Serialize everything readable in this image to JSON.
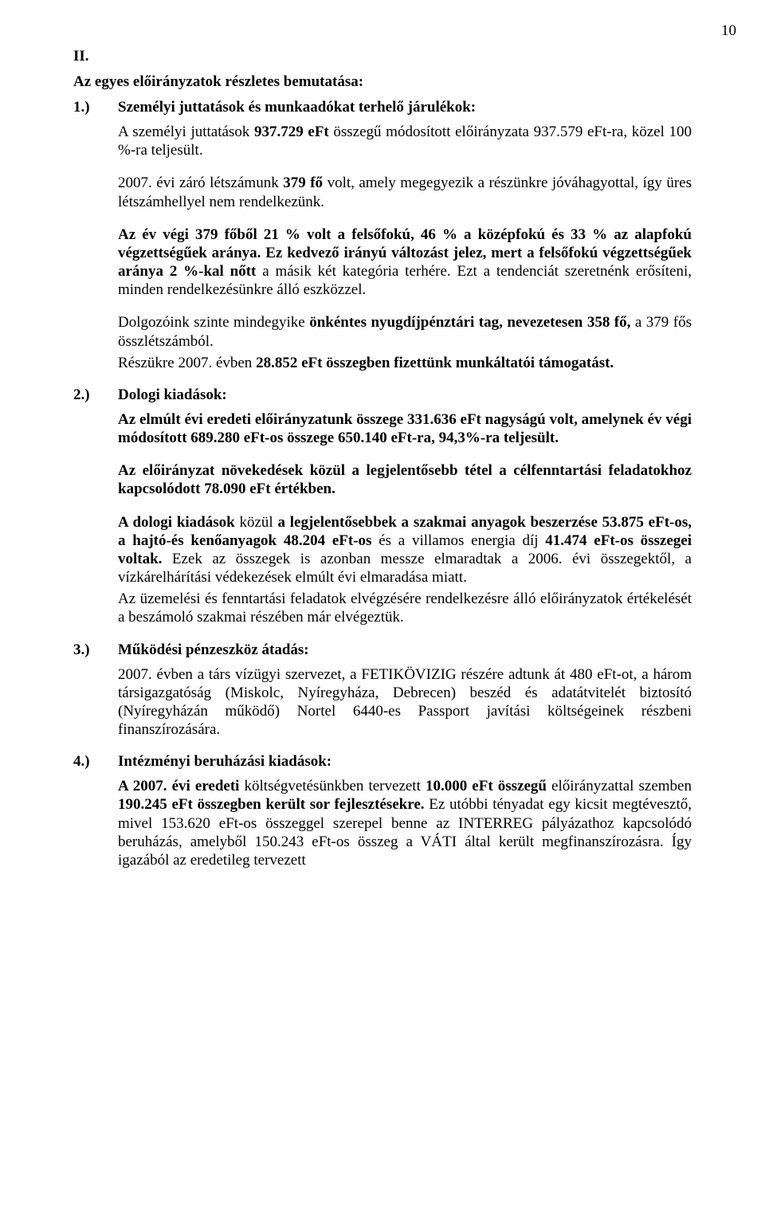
{
  "pageNumber": "10",
  "sectionII": {
    "roman": "II.",
    "title": "Az egyes előirányzatok részletes bemutatása:"
  },
  "item1": {
    "num": "1.)",
    "title": "Személyi juttatások és munkaadókat terhelő járulékok:",
    "p1_a": "A személyi juttatások ",
    "p1_b": "937.729 eFt ",
    "p1_c": "összegű módosított előirányzata 937.579 eFt-ra, közel 100 %-ra teljesült.",
    "p2_a": "2007. évi záró létszámunk ",
    "p2_b": "379 fő ",
    "p2_c": "volt, amely megegyezik a részünkre jóváhagyottal, így üres létszámhellyel nem rendelkezünk.",
    "p3_a": "Az év végi 379 főből 21 % volt a felsőfokú, 46 % a középfokú és 33 % az alapfokú végzettségűek aránya. Ez kedvező irányú változást jelez, mert a felsőfokú végzettségűek aránya 2 %-kal nőtt ",
    "p3_b": "a másik két kategória terhére. Ezt a tendenciát szeretnénk erősíteni, minden rendelkezésünkre álló eszközzel.",
    "p4_a": "Dolgozóink szinte mindegyike ",
    "p4_b": "önkéntes nyugdíjpénztári tag, nevezetesen 358 fő,",
    "p4_c": " a 379 fős összlétszámból.",
    "p5_a": "Részükre 2007. évben ",
    "p5_b": "28.852 eFt összegben fizettünk munkáltatói támogatást."
  },
  "item2": {
    "num": "2.)",
    "title": "Dologi kiadások:",
    "p1_a": "Az elmúlt évi eredeti előirányzatunk összege 331.636 eFt nagyságú volt, amelynek év végi módosított  689.280 eFt-os összege  650.140 eFt-ra, 94,3%-ra teljesült.",
    "p2_a": "Az előirányzat növekedések közül a legjelentősebb tétel a célfenntartási feladatokhoz kapcsolódott 78.090 eFt értékben.",
    "p3_a": "A dologi kiadások ",
    "p3_b": "közül ",
    "p3_c": "a legjelentősebbek a szakmai anyagok beszerzése 53.875 eFt-os, a hajtó-és kenőanyagok 48.204 eFt-os ",
    "p3_d": "és a villamos energia díj ",
    "p3_e": "41.474 eFt-os összegei voltak. ",
    "p3_f": "Ezek az összegek is azonban messze elmaradtak a 2006. évi összegektől, a vízkárelhárítási védekezések elmúlt évi elmaradása miatt.",
    "p4": "Az üzemelési és fenntartási feladatok elvégzésére rendelkezésre álló előirányzatok értékelését a beszámoló szakmai részében már elvégeztük."
  },
  "item3": {
    "num": "3.)",
    "title": "Működési pénzeszköz átadás:",
    "p1": "2007. évben a társ vízügyi szervezet, a FETIKÖVIZIG részére adtunk át 480 eFt-ot, a három társigazgatóság (Miskolc, Nyíregyháza, Debrecen) beszéd és adatátvitelét biztosító (Nyíregyházán működő) Nortel 6440-es Passport javítási költségeinek részbeni finanszírozására."
  },
  "item4": {
    "num": "4.)",
    "title": "Intézményi beruházási kiadások:",
    "p1_a": "A 2007. évi eredeti ",
    "p1_b": "költségvetésünkben tervezett ",
    "p1_c": "10.000 eFt összegű",
    "p1_d": " előirányzattal szemben ",
    "p1_e": "190.245 eFt összegben került sor fejlesztésekre. ",
    "p1_f": "Ez utóbbi tényadat egy kicsit megtévesztő, mivel 153.620 eFt-os összeggel szerepel benne az INTERREG pályázathoz kapcsolódó beruházás, amelyből 150.243 eFt-os összeg a VÁTI által került megfinanszírozásra. Így igazából az eredetileg tervezett"
  }
}
